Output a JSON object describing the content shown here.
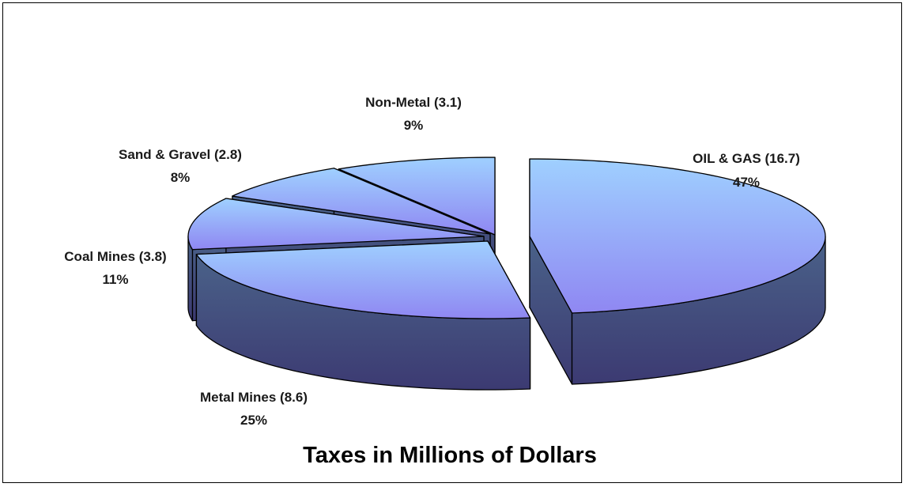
{
  "chart_data": {
    "type": "pie",
    "style": "3d-exploded",
    "title": "Taxes in Millions of Dollars",
    "slices": [
      {
        "name": "OIL & GAS",
        "value": 16.7,
        "percent": "47%",
        "label": "OIL & GAS (16.7)"
      },
      {
        "name": "Metal Mines",
        "value": 8.6,
        "percent": "25%",
        "label": "Metal Mines (8.6)"
      },
      {
        "name": "Coal Mines",
        "value": 3.8,
        "percent": "11%",
        "label": "Coal Mines (3.8)"
      },
      {
        "name": "Sand & Gravel",
        "value": 2.8,
        "percent": "8%",
        "label": "Sand & Gravel (2.8)"
      },
      {
        "name": "Non-Metal",
        "value": 3.1,
        "percent": "9%",
        "label": "Non-Metal (3.1)"
      }
    ],
    "colors": {
      "top_light": "#9fd0ff",
      "top_dark": "#8f87f2",
      "side_light": "#4a6289",
      "side_dark": "#3c3a72",
      "outline": "#000000"
    }
  }
}
